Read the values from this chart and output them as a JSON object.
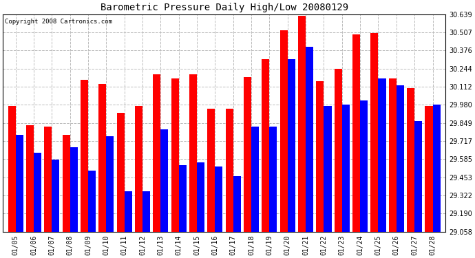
{
  "title": "Barometric Pressure Daily High/Low 20080129",
  "copyright": "Copyright 2008 Cartronics.com",
  "dates": [
    "01/05",
    "01/06",
    "01/07",
    "01/08",
    "01/09",
    "01/10",
    "01/11",
    "01/12",
    "01/13",
    "01/14",
    "01/15",
    "01/16",
    "01/17",
    "01/18",
    "01/19",
    "01/20",
    "01/21",
    "01/22",
    "01/23",
    "01/24",
    "01/25",
    "01/26",
    "01/27",
    "01/28"
  ],
  "highs": [
    29.97,
    29.83,
    29.82,
    29.76,
    30.16,
    30.13,
    29.92,
    29.97,
    30.2,
    30.17,
    30.2,
    29.95,
    29.95,
    30.18,
    30.31,
    30.52,
    30.63,
    30.15,
    30.24,
    30.49,
    30.5,
    30.17,
    30.1,
    29.97
  ],
  "lows": [
    29.76,
    29.63,
    29.58,
    29.67,
    29.5,
    29.75,
    29.35,
    29.35,
    29.8,
    29.54,
    29.56,
    29.53,
    29.46,
    29.82,
    29.82,
    30.31,
    30.4,
    29.97,
    29.98,
    30.01,
    30.17,
    30.12,
    29.86,
    29.98
  ],
  "high_color": "#ff0000",
  "low_color": "#0000ff",
  "bg_color": "#ffffff",
  "grid_color": "#bbbbbb",
  "ylim_min": 29.058,
  "ylim_max": 30.639,
  "yticks": [
    29.058,
    29.19,
    29.322,
    29.453,
    29.585,
    29.717,
    29.849,
    29.98,
    30.112,
    30.244,
    30.376,
    30.507,
    30.639
  ]
}
